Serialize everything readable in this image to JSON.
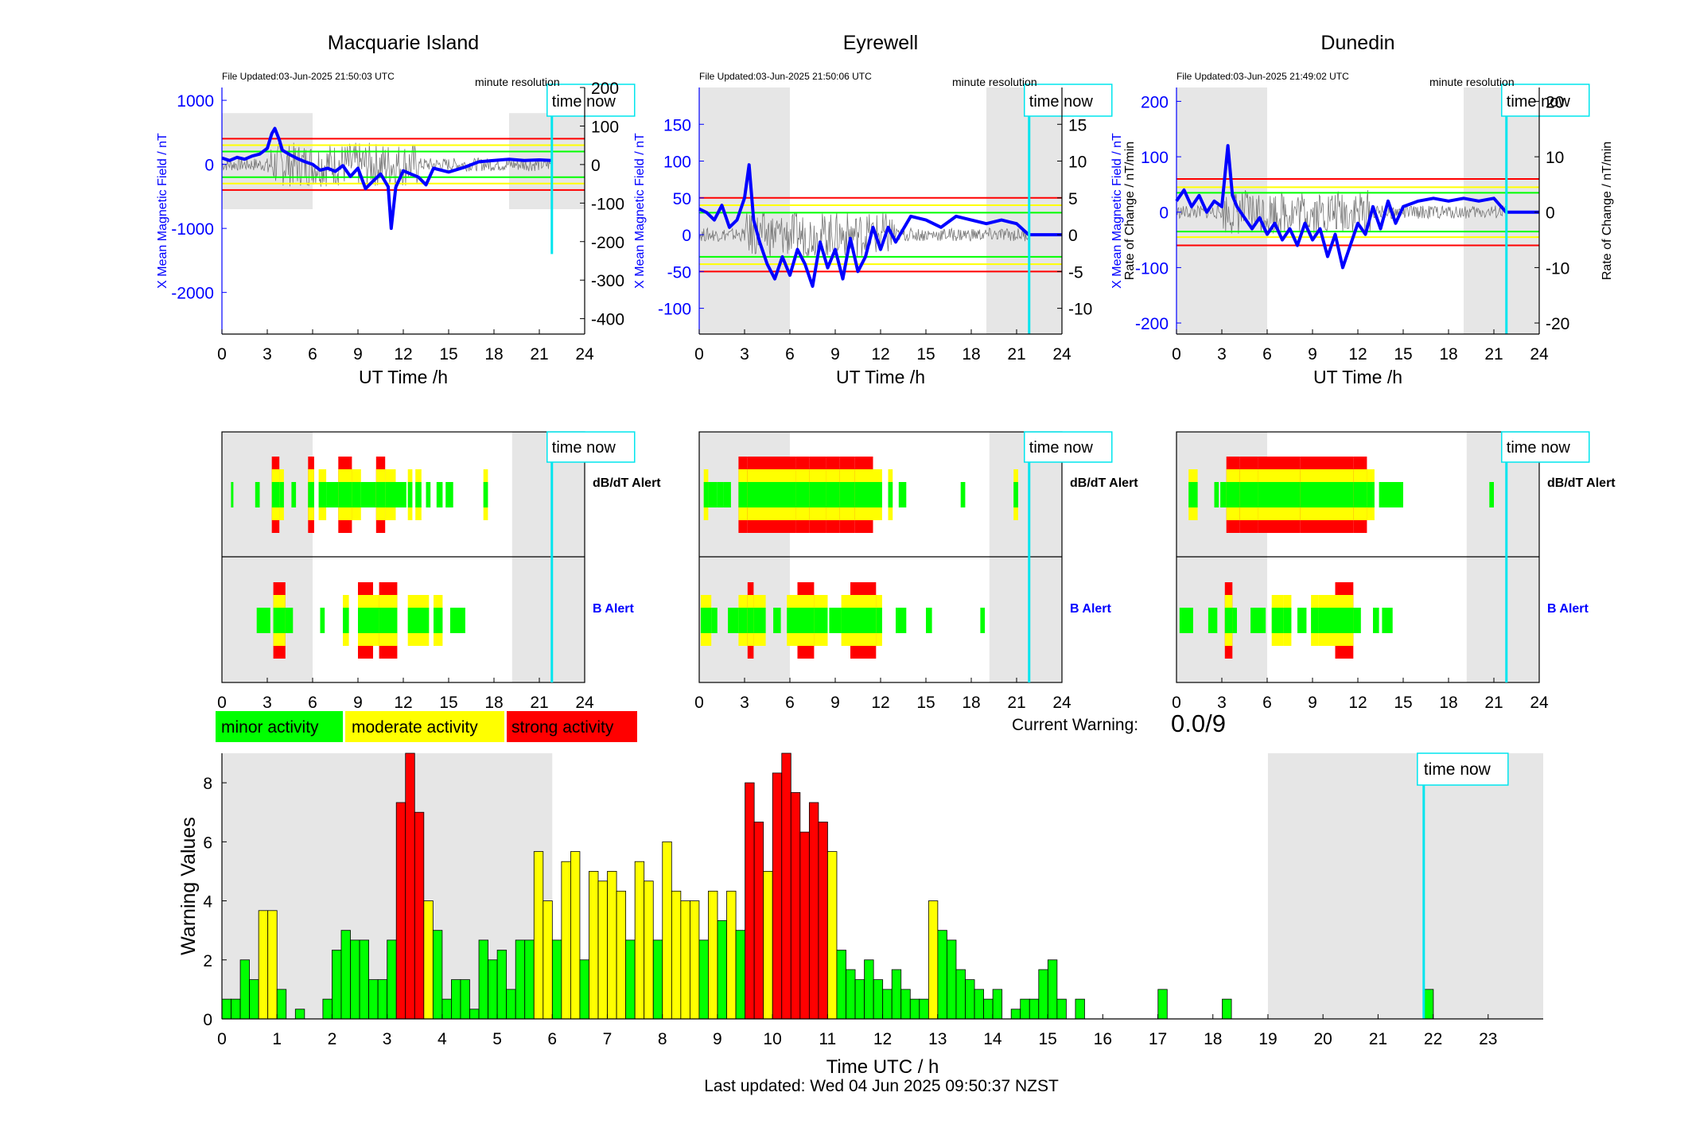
{
  "stations": [
    {
      "name": "Macquarie Island",
      "file_updated": "File Updated:03-Jun-2025 21:50:03 UTC",
      "resolution": "minute resolution",
      "left_ylabel": "X Mean Magnetic Field / nT",
      "right_ylabel": "",
      "left_ticks": [
        "1000",
        "0",
        "-1000",
        "-2000"
      ],
      "right_ticks": [
        "200",
        "100",
        "0",
        "-100",
        "-200",
        "-300",
        "-400"
      ],
      "red_levels": [
        400,
        -400
      ],
      "yellow_levels": [
        300,
        -300
      ],
      "green_levels": [
        200,
        -200
      ],
      "field_trace": [
        [
          0,
          100
        ],
        [
          0.5,
          60
        ],
        [
          1,
          110
        ],
        [
          1.5,
          80
        ],
        [
          2,
          130
        ],
        [
          2.5,
          160
        ],
        [
          3,
          250
        ],
        [
          3.3,
          480
        ],
        [
          3.5,
          560
        ],
        [
          3.8,
          380
        ],
        [
          4,
          220
        ],
        [
          4.5,
          150
        ],
        [
          5,
          90
        ],
        [
          5.5,
          40
        ],
        [
          6,
          0
        ],
        [
          6.5,
          -90
        ],
        [
          7,
          -60
        ],
        [
          7.5,
          -110
        ],
        [
          8,
          -20
        ],
        [
          8.5,
          -190
        ],
        [
          9,
          -60
        ],
        [
          9.5,
          -380
        ],
        [
          10,
          -260
        ],
        [
          10.5,
          -150
        ],
        [
          11,
          -350
        ],
        [
          11.2,
          -1000
        ],
        [
          11.5,
          -360
        ],
        [
          12,
          -100
        ],
        [
          13,
          -200
        ],
        [
          13.5,
          -320
        ],
        [
          14,
          -60
        ],
        [
          15,
          -120
        ],
        [
          16,
          -50
        ],
        [
          17,
          40
        ],
        [
          18,
          60
        ],
        [
          19,
          80
        ],
        [
          20,
          60
        ],
        [
          21,
          70
        ],
        [
          21.8,
          60
        ]
      ]
    },
    {
      "name": "Eyrewell",
      "file_updated": "File Updated:03-Jun-2025 21:50:06 UTC",
      "resolution": "minute resolution",
      "left_ylabel": "X Mean Magnetic Field / nT",
      "right_ylabel": "Rate of Change / nT/min",
      "left_ticks": [
        "150",
        "100",
        "50",
        "0",
        "-50",
        "-100"
      ],
      "right_ticks": [
        "15",
        "10",
        "5",
        "0",
        "-5",
        "-10"
      ],
      "red_levels": [
        50,
        -50
      ],
      "yellow_levels": [
        40,
        -40
      ],
      "green_levels": [
        30,
        -30
      ],
      "field_trace": [
        [
          0,
          35
        ],
        [
          0.5,
          30
        ],
        [
          1,
          20
        ],
        [
          1.5,
          40
        ],
        [
          2,
          10
        ],
        [
          2.5,
          20
        ],
        [
          3,
          50
        ],
        [
          3.3,
          95
        ],
        [
          3.6,
          20
        ],
        [
          4,
          -10
        ],
        [
          4.5,
          -40
        ],
        [
          5,
          -60
        ],
        [
          5.5,
          -30
        ],
        [
          6,
          -55
        ],
        [
          6.5,
          -20
        ],
        [
          7,
          -40
        ],
        [
          7.5,
          -70
        ],
        [
          8,
          -10
        ],
        [
          8.5,
          -45
        ],
        [
          9,
          -20
        ],
        [
          9.5,
          -60
        ],
        [
          10,
          -5
        ],
        [
          10.5,
          -50
        ],
        [
          11,
          -30
        ],
        [
          11.5,
          10
        ],
        [
          12,
          -20
        ],
        [
          12.5,
          10
        ],
        [
          13,
          -10
        ],
        [
          14,
          25
        ],
        [
          15,
          20
        ],
        [
          16,
          10
        ],
        [
          17,
          25
        ],
        [
          18,
          20
        ],
        [
          19,
          15
        ],
        [
          20,
          20
        ],
        [
          21,
          15
        ],
        [
          21.8,
          0
        ],
        [
          24,
          0
        ]
      ]
    },
    {
      "name": "Dunedin",
      "file_updated": "File Updated:03-Jun-2025 21:49:02 UTC",
      "resolution": "minute resolution",
      "left_ylabel": "X Mean Magnetic Field / nT",
      "right_ylabel": "Rate of Change / nT/min",
      "left_ticks": [
        "200",
        "100",
        "0",
        "-100",
        "-200"
      ],
      "right_ticks": [
        "20",
        "10",
        "0",
        "-10",
        "-20"
      ],
      "red_levels": [
        60,
        -60
      ],
      "yellow_levels": [
        45,
        -45
      ],
      "green_levels": [
        35,
        -35
      ],
      "field_trace": [
        [
          0,
          20
        ],
        [
          0.5,
          40
        ],
        [
          1,
          10
        ],
        [
          1.5,
          30
        ],
        [
          2,
          0
        ],
        [
          2.5,
          20
        ],
        [
          3,
          10
        ],
        [
          3.4,
          120
        ],
        [
          3.7,
          30
        ],
        [
          4,
          10
        ],
        [
          4.5,
          -10
        ],
        [
          5,
          -30
        ],
        [
          5.5,
          -10
        ],
        [
          6,
          -40
        ],
        [
          6.5,
          -20
        ],
        [
          7,
          -50
        ],
        [
          7.5,
          -30
        ],
        [
          8,
          -60
        ],
        [
          8.5,
          -20
        ],
        [
          9,
          -50
        ],
        [
          9.5,
          -30
        ],
        [
          10,
          -80
        ],
        [
          10.5,
          -40
        ],
        [
          11,
          -100
        ],
        [
          11.5,
          -60
        ],
        [
          12,
          -20
        ],
        [
          12.5,
          -40
        ],
        [
          13,
          10
        ],
        [
          13.5,
          -30
        ],
        [
          14,
          20
        ],
        [
          14.5,
          -20
        ],
        [
          15,
          10
        ],
        [
          16,
          20
        ],
        [
          17,
          25
        ],
        [
          18,
          20
        ],
        [
          19,
          25
        ],
        [
          20,
          20
        ],
        [
          21,
          25
        ],
        [
          21.8,
          0
        ],
        [
          24,
          0
        ]
      ]
    }
  ],
  "alerts": {
    "dbdt_label": "dB/dT Alert",
    "b_label": "B Alert",
    "time_now_label": "time now",
    "bars": [
      {
        "dbdt": [
          [
            0.6,
            0.7,
            1
          ],
          [
            2.2,
            2.5,
            1
          ],
          [
            3.3,
            3.8,
            3
          ],
          [
            3.8,
            4.1,
            2
          ],
          [
            4.6,
            4.9,
            1
          ],
          [
            5.7,
            6.1,
            3
          ],
          [
            6.4,
            6.9,
            2
          ],
          [
            6.9,
            7.7,
            1
          ],
          [
            7.7,
            8.6,
            3
          ],
          [
            8.6,
            9.2,
            2
          ],
          [
            9.2,
            10.2,
            1
          ],
          [
            10.2,
            10.8,
            3
          ],
          [
            10.8,
            11.5,
            2
          ],
          [
            11.5,
            12.2,
            1
          ],
          [
            12.3,
            12.6,
            2
          ],
          [
            12.8,
            13.2,
            2
          ],
          [
            13.5,
            13.8,
            1
          ],
          [
            14.2,
            14.6,
            1
          ],
          [
            14.8,
            15.3,
            1
          ],
          [
            17.3,
            17.6,
            2
          ]
        ],
        "b": [
          [
            2.3,
            3.2,
            1
          ],
          [
            3.4,
            4.2,
            3
          ],
          [
            4.2,
            4.7,
            1
          ],
          [
            6.5,
            6.8,
            1
          ],
          [
            8,
            8.4,
            2
          ],
          [
            9,
            10,
            3
          ],
          [
            10,
            10.4,
            2
          ],
          [
            10.4,
            11.6,
            3
          ],
          [
            12.3,
            13.7,
            2
          ],
          [
            14,
            14.6,
            2
          ],
          [
            15.1,
            16.1,
            1
          ]
        ]
      },
      {
        "dbdt": [
          [
            0.3,
            0.6,
            2
          ],
          [
            0.6,
            1.2,
            1
          ],
          [
            1.2,
            1.6,
            1
          ],
          [
            1.6,
            2.1,
            1
          ],
          [
            2.6,
            3.2,
            3
          ],
          [
            3.2,
            4,
            3
          ],
          [
            4,
            5,
            3
          ],
          [
            5,
            6.4,
            3
          ],
          [
            6.4,
            7.3,
            3
          ],
          [
            7.3,
            8.4,
            3
          ],
          [
            8.4,
            9.3,
            3
          ],
          [
            9.3,
            10.3,
            3
          ],
          [
            10.3,
            11.5,
            3
          ],
          [
            11.5,
            12.1,
            2
          ],
          [
            12.5,
            12.8,
            2
          ],
          [
            13.2,
            13.7,
            1
          ],
          [
            17.3,
            17.6,
            1
          ],
          [
            20.8,
            21.1,
            2
          ]
        ],
        "b": [
          [
            0.1,
            0.8,
            2
          ],
          [
            0.8,
            1.2,
            1
          ],
          [
            1.9,
            2.6,
            1
          ],
          [
            2.6,
            3.2,
            2
          ],
          [
            3.2,
            3.6,
            3
          ],
          [
            3.6,
            4.4,
            2
          ],
          [
            4.9,
            5.4,
            1
          ],
          [
            5.8,
            6.5,
            2
          ],
          [
            6.5,
            7.6,
            3
          ],
          [
            7.6,
            8.5,
            2
          ],
          [
            8.6,
            9.4,
            1
          ],
          [
            9.4,
            10,
            2
          ],
          [
            10,
            11.7,
            3
          ],
          [
            11.7,
            12.1,
            2
          ],
          [
            13,
            13.7,
            1
          ],
          [
            15,
            15.4,
            1
          ],
          [
            18.6,
            18.9,
            1
          ]
        ]
      },
      {
        "dbdt": [
          [
            0.8,
            1.4,
            2
          ],
          [
            2.5,
            2.8,
            1
          ],
          [
            2.9,
            3.3,
            1
          ],
          [
            3.3,
            4.2,
            3
          ],
          [
            4.2,
            5.4,
            3
          ],
          [
            5.4,
            6.5,
            3
          ],
          [
            6.5,
            8.2,
            3
          ],
          [
            8.2,
            9.5,
            3
          ],
          [
            9.5,
            11.7,
            3
          ],
          [
            11.7,
            12.6,
            3
          ],
          [
            12.6,
            13.1,
            2
          ],
          [
            13.4,
            14,
            1
          ],
          [
            14,
            15,
            1
          ],
          [
            20.7,
            21,
            1
          ]
        ],
        "b": [
          [
            0.2,
            1.1,
            1
          ],
          [
            2.1,
            2.7,
            1
          ],
          [
            3.2,
            3.7,
            3
          ],
          [
            3.7,
            4,
            1
          ],
          [
            4.9,
            5.5,
            1
          ],
          [
            5.5,
            5.9,
            1
          ],
          [
            6.3,
            7.1,
            2
          ],
          [
            7.1,
            7.6,
            2
          ],
          [
            8,
            8.6,
            1
          ],
          [
            8.9,
            9.4,
            2
          ],
          [
            9.4,
            10.5,
            2
          ],
          [
            10.5,
            11.7,
            3
          ],
          [
            11.7,
            12.2,
            1
          ],
          [
            13,
            13.4,
            1
          ],
          [
            13.6,
            14.3,
            1
          ]
        ]
      }
    ]
  },
  "legend": [
    "minor activity",
    "moderate activity",
    "strong activity"
  ],
  "current_warning_label": "Current Warning:",
  "current_warning_value": "0.0/9",
  "colors": {
    "minor": "#00ff00",
    "moderate": "#ffff00",
    "strong": "#ff0000",
    "night_shade": "#e6e6e6",
    "time_now": "#00e5ee",
    "field_trace": "#0000ff",
    "left_axis": "#0000ff"
  },
  "chart_data": {
    "type": "bar",
    "title": "",
    "xlabel": "Time UTC / h",
    "ylabel": "Warning Values",
    "xlim": [
      0,
      24
    ],
    "ylim": [
      0,
      9
    ],
    "x_ticks": [
      "0",
      "1",
      "2",
      "3",
      "4",
      "5",
      "6",
      "7",
      "8",
      "9",
      "10",
      "11",
      "12",
      "13",
      "14",
      "15",
      "16",
      "17",
      "18",
      "19",
      "20",
      "21",
      "22",
      "23"
    ],
    "y_ticks": [
      "0",
      "2",
      "4",
      "6",
      "8"
    ],
    "bin_width_h": 0.1667,
    "values": [
      0.67,
      0.67,
      2,
      1.33,
      3.67,
      3.67,
      1,
      0,
      0.33,
      0,
      0,
      0.67,
      2.33,
      3,
      2.67,
      2.67,
      1.33,
      1.33,
      2.67,
      7.33,
      9,
      7,
      4,
      3,
      0.67,
      1.33,
      1.33,
      0.33,
      2.67,
      2,
      2.33,
      1,
      2.67,
      2.67,
      5.67,
      4,
      2.67,
      5.33,
      5.67,
      2,
      5,
      4.67,
      5,
      4.33,
      2.67,
      5.33,
      4.67,
      2.67,
      6,
      4.33,
      4,
      4,
      2.67,
      4.33,
      3.33,
      4.33,
      3,
      8,
      6.67,
      5,
      8.33,
      9,
      7.67,
      6.33,
      7.33,
      6.67,
      5.67,
      2.33,
      1.67,
      1.33,
      2,
      1.33,
      1,
      1.67,
      1,
      0.67,
      0.67,
      4,
      3,
      2.67,
      1.67,
      1.33,
      1,
      0.67,
      1,
      0,
      0.33,
      0.67,
      0.67,
      1.67,
      2,
      0.67,
      0,
      0.67,
      0,
      0,
      0,
      0,
      0,
      0,
      0,
      0,
      1,
      0,
      0,
      0,
      0,
      0,
      0,
      0.67,
      0,
      0,
      0,
      0,
      0,
      0,
      0,
      0,
      0,
      0,
      0,
      0,
      0,
      0,
      0,
      0,
      0,
      0,
      0,
      0,
      0,
      1,
      0,
      0,
      0,
      0,
      0,
      0,
      0,
      0,
      0,
      0,
      0,
      0
    ],
    "night_ranges_h": [
      [
        0,
        6
      ],
      [
        19,
        24
      ]
    ],
    "time_now_h": 21.83,
    "time_now_label": "time now"
  },
  "footer": "Last updated: Wed 04 Jun 2025 09:50:37 NZST"
}
